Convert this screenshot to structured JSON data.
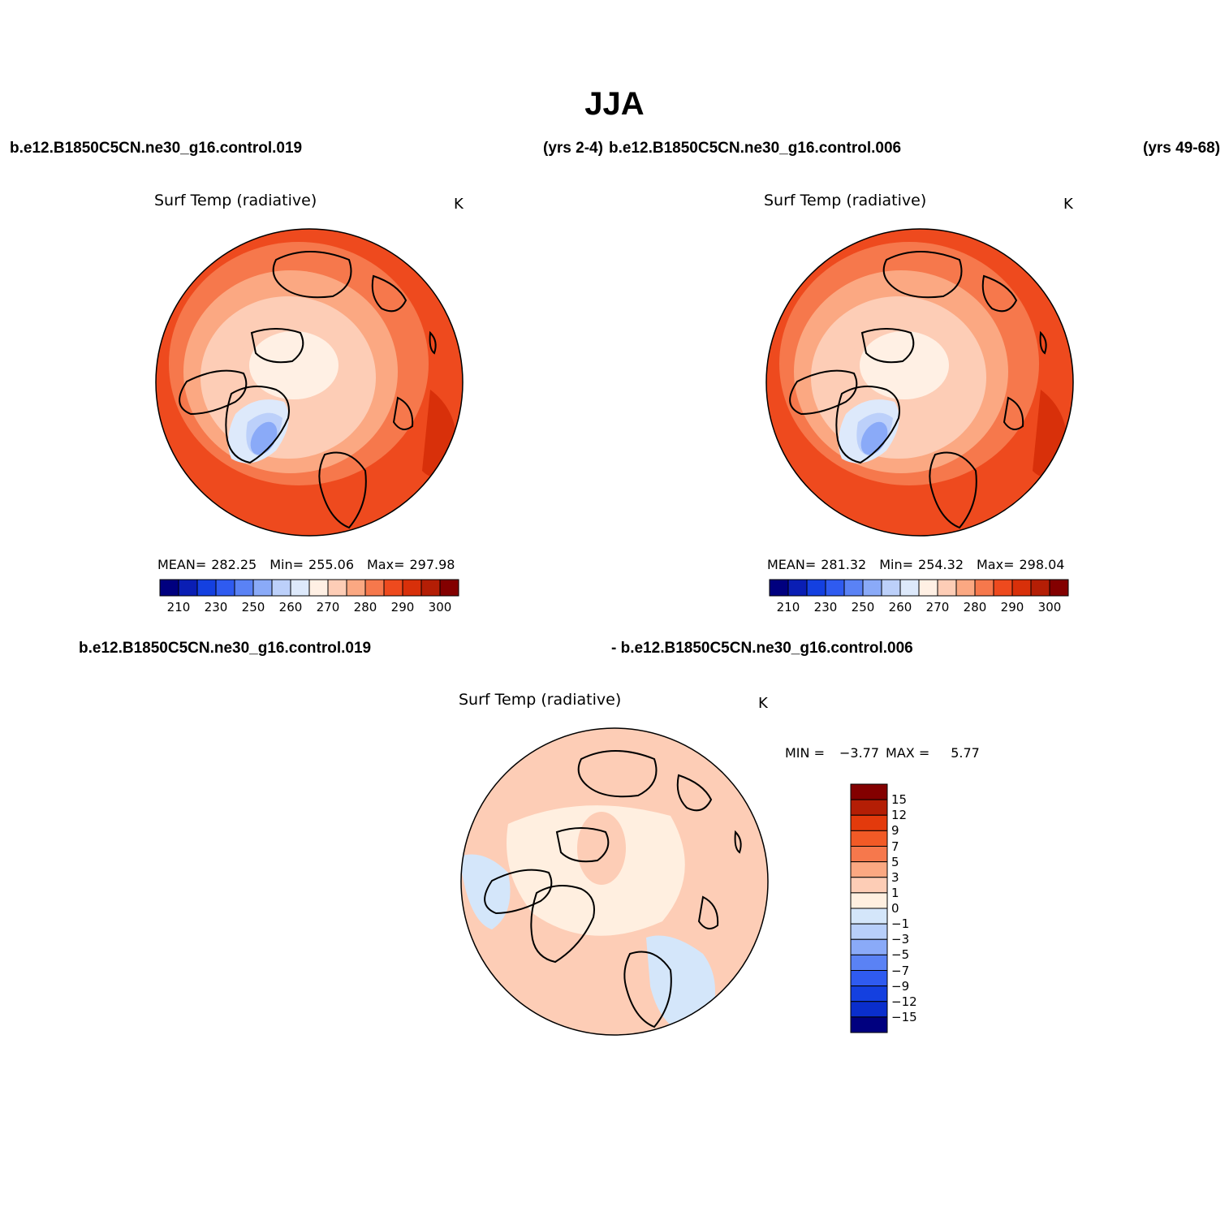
{
  "header": {
    "title": "JJA",
    "case_a": "b.e12.B1850C5CN.ne30_g16.control.019",
    "case_a_years": "(yrs 2-4)",
    "case_b": "b.e12.B1850C5CN.ne30_g16.control.006",
    "case_b_years": "(yrs 49-68)"
  },
  "panels": [
    {
      "case": "b.e12.B1850C5CN.ne30_g16.control.019",
      "variable": "Surf Temp (radiative)",
      "units": "K",
      "mean_label": "MEAN=",
      "mean": "282.25",
      "min_label": "Min=",
      "min": "255.06",
      "max_label": "Max=",
      "max": "297.98",
      "colorbar_ticks": [
        "210",
        "230",
        "250",
        "260",
        "270",
        "280",
        "290",
        "300"
      ]
    },
    {
      "case": "b.e12.B1850C5CN.ne30_g16.control.006",
      "variable": "Surf Temp (radiative)",
      "units": "K",
      "mean_label": "MEAN=",
      "mean": "281.32",
      "min_label": "Min=",
      "min": "254.32",
      "max_label": "Max=",
      "max": "298.04",
      "colorbar_ticks": [
        "210",
        "230",
        "250",
        "260",
        "270",
        "280",
        "290",
        "300"
      ]
    }
  ],
  "difference": {
    "case_line1": "b.e12.B1850C5CN.ne30_g16.control.019",
    "case_line2": "- b.e12.B1850C5CN.ne30_g16.control.006",
    "variable": "Surf Temp (radiative)",
    "units": "K",
    "min_label": "MIN =",
    "min": "−3.77",
    "max_label": "MAX =",
    "max": "5.77",
    "colorbar_ticks": [
      "15",
      "12",
      "9",
      "7",
      "5",
      "3",
      "1",
      "0",
      "−1",
      "−3",
      "−5",
      "−7",
      "−9",
      "−12",
      "−15"
    ]
  },
  "colors": {
    "abs_scale": [
      "#00007f",
      "#0a1eb4",
      "#1440e0",
      "#2f5bf0",
      "#5a82f5",
      "#8aaaf8",
      "#bcd0fa",
      "#dde9fb",
      "#fff0e4",
      "#fdcdb6",
      "#fba882",
      "#f6784c",
      "#ee4a1e",
      "#d8300a",
      "#b41e05",
      "#830000"
    ],
    "diff_scale": [
      "#830000",
      "#b41e05",
      "#e33a0c",
      "#f25a26",
      "#f6784c",
      "#fba882",
      "#fdcdb6",
      "#ffefe0",
      "#d4e6fa",
      "#b8cffa",
      "#8aaaf8",
      "#5a82f5",
      "#2f5bf0",
      "#1440e0",
      "#0a2ecc",
      "#00007f"
    ],
    "warm_base": "#ee4a1e",
    "ice_cold": "#bcd0fa",
    "diff_base": "#fdcdb6"
  }
}
